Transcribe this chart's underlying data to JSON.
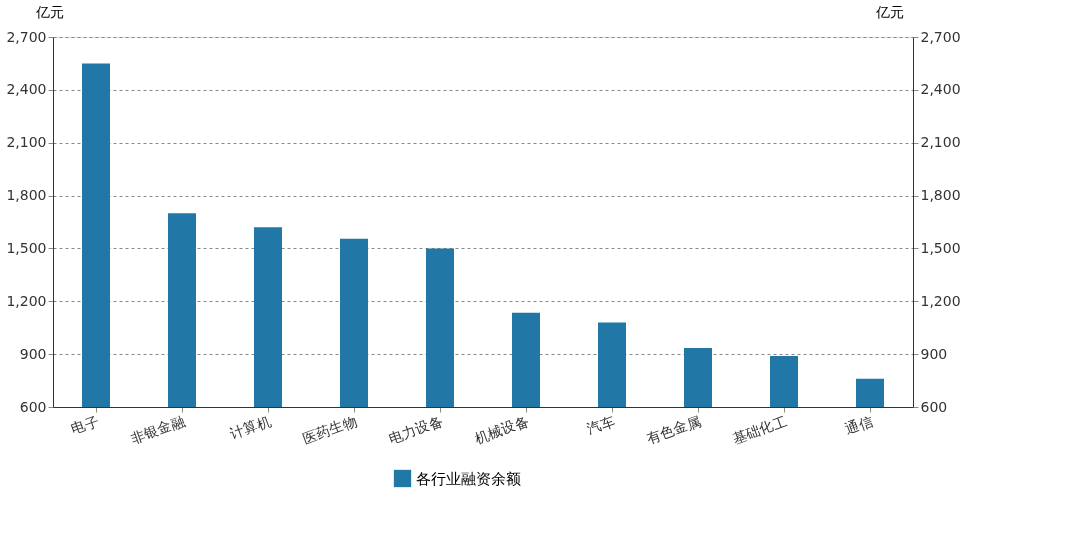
{
  "chart_data": {
    "type": "bar",
    "categories": [
      "电子",
      "非银金融",
      "计算机",
      "医药生物",
      "电力设备",
      "机械设备",
      "汽车",
      "有色金属",
      "基础化工",
      "通信"
    ],
    "series": [
      {
        "name": "各行业融资余额",
        "color": "#2177a6",
        "values": [
          2550,
          1700,
          1620,
          1555,
          1500,
          1135,
          1080,
          935,
          890,
          760
        ]
      }
    ],
    "ylabel": "亿元",
    "y2label": "亿元",
    "ylim": [
      600,
      2700
    ],
    "yticks": [
      600,
      900,
      {
        "value": 1200,
        "label": "1,200"
      },
      {
        "value": 1500,
        "label": "1,500"
      },
      {
        "value": 1800,
        "label": "1,800"
      },
      {
        "value": 2100,
        "label": "2,100"
      },
      {
        "value": 2400,
        "label": "2,400"
      },
      {
        "value": 2700,
        "label": "2,700"
      }
    ],
    "y2lim": [
      600,
      2700
    ],
    "y2ticks": [
      600,
      900,
      {
        "value": 1200,
        "label": "1,200"
      },
      {
        "value": 1500,
        "label": "1,500"
      },
      {
        "value": 1800,
        "label": "1,800"
      },
      {
        "value": 2100,
        "label": "2,100"
      },
      {
        "value": 2400,
        "label": "2,400"
      },
      {
        "value": 2700,
        "label": "2,700"
      }
    ],
    "grid": "y",
    "legend": "bottom"
  }
}
